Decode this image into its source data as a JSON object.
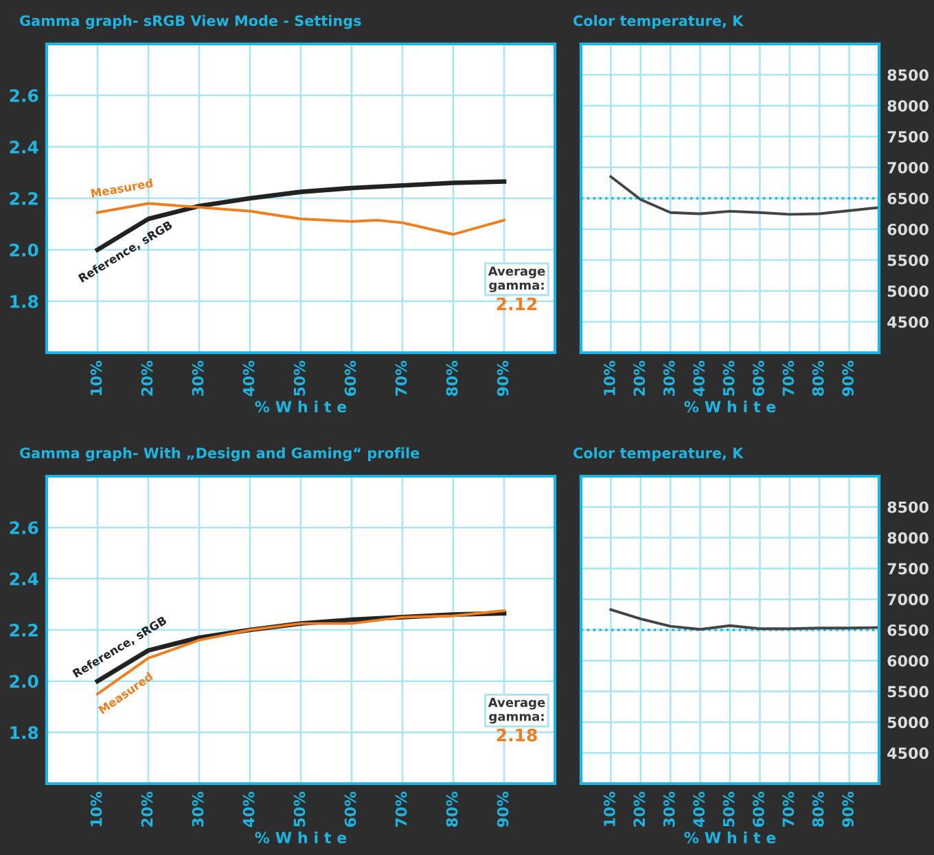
{
  "chart_data": [
    {
      "type": "line",
      "title": "Gamma graph- sRGB View Mode - Settings",
      "xlabel": "% W h i t e",
      "xlim": [
        0,
        100
      ],
      "xticks": [
        {
          "value": 10,
          "label": "10%"
        },
        {
          "value": 20,
          "label": "20%"
        },
        {
          "value": 30,
          "label": "30%"
        },
        {
          "value": 40,
          "label": "40%"
        },
        {
          "value": 50,
          "label": "50%"
        },
        {
          "value": 60,
          "label": "60%"
        },
        {
          "value": 70,
          "label": "70%"
        },
        {
          "value": 80,
          "label": "80%"
        },
        {
          "value": 90,
          "label": "90%"
        }
      ],
      "ylim": [
        1.6,
        2.8
      ],
      "yticks": [
        {
          "value": 1.8,
          "label": "1.8"
        },
        {
          "value": 2.0,
          "label": "2.0"
        },
        {
          "value": 2.2,
          "label": "2.2"
        },
        {
          "value": 2.4,
          "label": "2.4"
        },
        {
          "value": 2.6,
          "label": "2.6"
        }
      ],
      "grid": true,
      "annotations": [
        "Average gamma:",
        "2.12"
      ],
      "series": [
        {
          "name": "Reference, sRGB",
          "color": "#222222",
          "x": [
            10,
            20,
            30,
            40,
            50,
            60,
            70,
            80,
            90
          ],
          "values": [
            2.0,
            2.12,
            2.17,
            2.2,
            2.225,
            2.24,
            2.25,
            2.26,
            2.265
          ]
        },
        {
          "name": "Measured",
          "color": "#f07d1e",
          "x": [
            10,
            20,
            30,
            40,
            50,
            60,
            65,
            70,
            80,
            90
          ],
          "values": [
            2.145,
            2.18,
            2.165,
            2.15,
            2.12,
            2.11,
            2.115,
            2.105,
            2.06,
            2.115
          ]
        }
      ]
    },
    {
      "type": "line",
      "title": "Color temperature, K",
      "xlabel": "% W h i t e",
      "xlim": [
        0,
        100
      ],
      "xticks": [
        {
          "value": 10,
          "label": "10%"
        },
        {
          "value": 20,
          "label": "20%"
        },
        {
          "value": 30,
          "label": "30%"
        },
        {
          "value": 40,
          "label": "40%"
        },
        {
          "value": 50,
          "label": "50%"
        },
        {
          "value": 60,
          "label": "60%"
        },
        {
          "value": 70,
          "label": "70%"
        },
        {
          "value": 80,
          "label": "80%"
        },
        {
          "value": 90,
          "label": "90%"
        }
      ],
      "y2lim": [
        4000,
        9000
      ],
      "y2ticks": [
        4500,
        5000,
        5500,
        6000,
        6500,
        7000,
        7500,
        8000,
        8500
      ],
      "grid": true,
      "ref_lines": [
        {
          "axis": "y2",
          "value": 6500,
          "color": "#1fb5e0",
          "line_style": "dotted"
        }
      ],
      "series": [
        {
          "color": "#444444",
          "axis": "y2",
          "x": [
            10,
            20,
            30,
            40,
            50,
            60,
            70,
            80,
            90,
            100
          ],
          "values": [
            6850,
            6480,
            6270,
            6250,
            6290,
            6270,
            6240,
            6250,
            6300,
            6350
          ]
        }
      ]
    },
    {
      "type": "line",
      "title": "Gamma graph- With „Design and Gaming“ profile",
      "xlabel": "% W h i t e",
      "xlim": [
        0,
        100
      ],
      "xticks": [
        {
          "value": 10,
          "label": "10%"
        },
        {
          "value": 20,
          "label": "20%"
        },
        {
          "value": 30,
          "label": "30%"
        },
        {
          "value": 40,
          "label": "40%"
        },
        {
          "value": 50,
          "label": "50%"
        },
        {
          "value": 60,
          "label": "60%"
        },
        {
          "value": 70,
          "label": "70%"
        },
        {
          "value": 80,
          "label": "80%"
        },
        {
          "value": 90,
          "label": "90%"
        }
      ],
      "ylim": [
        1.6,
        2.8
      ],
      "yticks": [
        {
          "value": 1.8,
          "label": "1.8"
        },
        {
          "value": 2.0,
          "label": "2.0"
        },
        {
          "value": 2.2,
          "label": "2.2"
        },
        {
          "value": 2.4,
          "label": "2.4"
        },
        {
          "value": 2.6,
          "label": "2.6"
        }
      ],
      "grid": true,
      "annotations": [
        "Average gamma:",
        "2.18"
      ],
      "series": [
        {
          "name": "Reference, sRGB",
          "color": "#222222",
          "x": [
            10,
            20,
            30,
            40,
            50,
            60,
            70,
            80,
            90
          ],
          "values": [
            2.0,
            2.12,
            2.17,
            2.2,
            2.225,
            2.24,
            2.25,
            2.26,
            2.265
          ]
        },
        {
          "name": "Measured",
          "color": "#f07d1e",
          "x": [
            10,
            20,
            30,
            40,
            50,
            60,
            70,
            80,
            90
          ],
          "values": [
            1.95,
            2.09,
            2.16,
            2.2,
            2.225,
            2.225,
            2.25,
            2.255,
            2.275
          ]
        }
      ]
    },
    {
      "type": "line",
      "title": "Color temperature, K",
      "xlabel": "% W h i t e",
      "xlim": [
        0,
        100
      ],
      "xticks": [
        {
          "value": 10,
          "label": "10%"
        },
        {
          "value": 20,
          "label": "20%"
        },
        {
          "value": 30,
          "label": "30%"
        },
        {
          "value": 40,
          "label": "40%"
        },
        {
          "value": 50,
          "label": "50%"
        },
        {
          "value": 60,
          "label": "60%"
        },
        {
          "value": 70,
          "label": "70%"
        },
        {
          "value": 80,
          "label": "80%"
        },
        {
          "value": 90,
          "label": "90%"
        }
      ],
      "y2lim": [
        4000,
        9000
      ],
      "y2ticks": [
        4500,
        5000,
        5500,
        6000,
        6500,
        7000,
        7500,
        8000,
        8500
      ],
      "grid": true,
      "ref_lines": [
        {
          "axis": "y2",
          "value": 6500,
          "color": "#1fb5e0",
          "line_style": "dotted"
        }
      ],
      "series": [
        {
          "color": "#444444",
          "axis": "y2",
          "x": [
            10,
            20,
            30,
            40,
            50,
            60,
            70,
            80,
            90,
            100
          ],
          "values": [
            6830,
            6680,
            6560,
            6510,
            6570,
            6520,
            6520,
            6530,
            6530,
            6540
          ]
        }
      ]
    }
  ]
}
